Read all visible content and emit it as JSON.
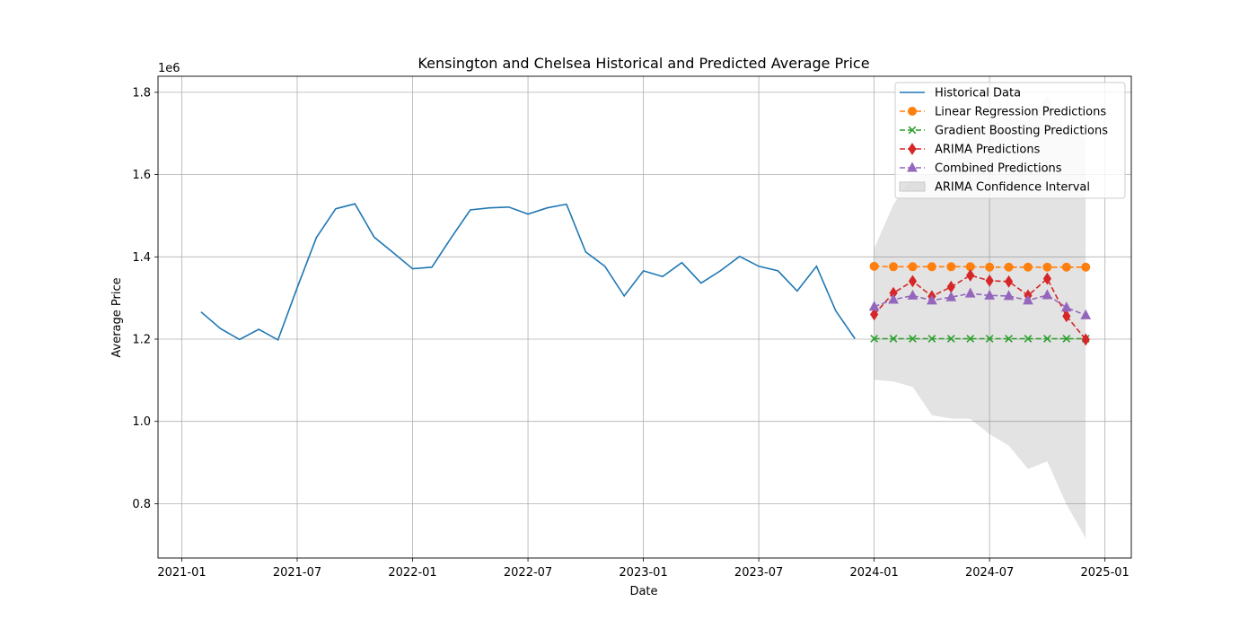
{
  "chart_data": {
    "type": "line",
    "title": "Kensington and Chelsea Historical and Predicted Average Price",
    "xlabel": "Date",
    "ylabel": "Average Price",
    "y_offset_label": "1e6",
    "x_ticks": [
      "2021-01",
      "2021-07",
      "2022-01",
      "2022-07",
      "2023-01",
      "2023-07",
      "2024-01",
      "2024-07",
      "2025-01"
    ],
    "y_ticks": [
      "0.8",
      "1.0",
      "1.2",
      "1.4",
      "1.6",
      "1.8"
    ],
    "grid": true,
    "legend_position": "top-right",
    "historical": {
      "name": "Historical Data",
      "color": "#1f77b4",
      "x": [
        "2021-02",
        "2021-03",
        "2021-04",
        "2021-05",
        "2021-06",
        "2021-07",
        "2021-08",
        "2021-09",
        "2021-10",
        "2021-11",
        "2021-12",
        "2022-01",
        "2022-02",
        "2022-03",
        "2022-04",
        "2022-05",
        "2022-06",
        "2022-07",
        "2022-08",
        "2022-09",
        "2022-10",
        "2022-11",
        "2022-12",
        "2023-01",
        "2023-02",
        "2023-03",
        "2023-04",
        "2023-05",
        "2023-06",
        "2023-07",
        "2023-08",
        "2023-09",
        "2023-10",
        "2023-11",
        "2023-12"
      ],
      "y": [
        1.266,
        1.226,
        1.199,
        1.224,
        1.198,
        1.325,
        1.447,
        1.517,
        1.529,
        1.448,
        1.41,
        1.371,
        1.375,
        1.446,
        1.514,
        1.519,
        1.521,
        1.504,
        1.519,
        1.528,
        1.412,
        1.377,
        1.305,
        1.366,
        1.352,
        1.386,
        1.336,
        1.366,
        1.401,
        1.377,
        1.366,
        1.317,
        1.377,
        1.269,
        1.201
      ]
    },
    "forecast_x": [
      "2024-01",
      "2024-02",
      "2024-03",
      "2024-04",
      "2024-05",
      "2024-06",
      "2024-07",
      "2024-08",
      "2024-09",
      "2024-10",
      "2024-11",
      "2024-12"
    ],
    "series": [
      {
        "name": "Linear Regression Predictions",
        "color": "#ff7f0e",
        "marker": "circle",
        "y": [
          1.377,
          1.376,
          1.376,
          1.376,
          1.376,
          1.376,
          1.375,
          1.375,
          1.375,
          1.375,
          1.375,
          1.375
        ]
      },
      {
        "name": "Gradient Boosting Predictions",
        "color": "#2ca02c",
        "marker": "x",
        "y": [
          1.201,
          1.201,
          1.201,
          1.201,
          1.201,
          1.201,
          1.201,
          1.201,
          1.201,
          1.201,
          1.201,
          1.201
        ]
      },
      {
        "name": "ARIMA Predictions",
        "color": "#d62728",
        "marker": "diamond",
        "y": [
          1.26,
          1.312,
          1.341,
          1.304,
          1.327,
          1.355,
          1.342,
          1.34,
          1.306,
          1.347,
          1.256,
          1.199
        ]
      },
      {
        "name": "Combined Predictions",
        "color": "#9467bd",
        "marker": "triangle",
        "y": [
          1.279,
          1.296,
          1.306,
          1.294,
          1.302,
          1.311,
          1.306,
          1.305,
          1.294,
          1.307,
          1.277,
          1.258
        ]
      }
    ],
    "confidence_interval": {
      "name": "ARIMA Confidence Interval",
      "color": "#d3d3d3",
      "lower": [
        1.101,
        1.097,
        1.084,
        1.015,
        1.007,
        1.006,
        0.969,
        0.941,
        0.884,
        0.903,
        0.798,
        0.716
      ],
      "upper": [
        1.42,
        1.527,
        1.598,
        1.6,
        1.65,
        1.7,
        1.72,
        1.74,
        1.73,
        1.79,
        1.7,
        1.69
      ]
    }
  }
}
